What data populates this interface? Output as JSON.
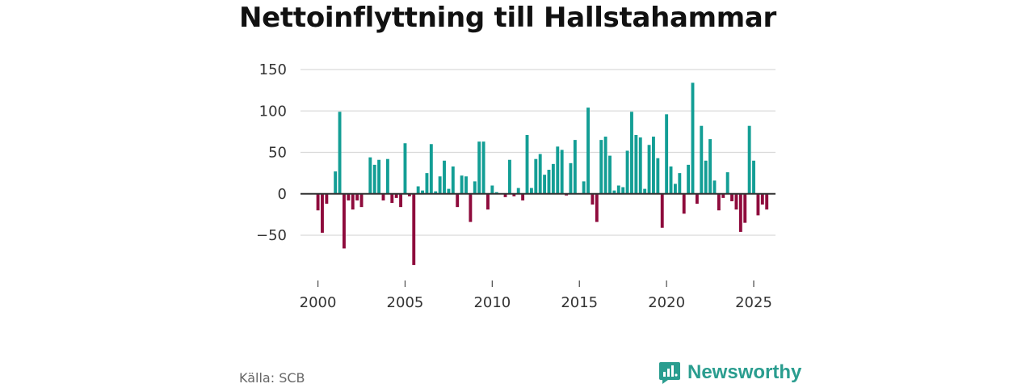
{
  "title": "Nettoinflyttning till Hallstahammar",
  "source": "Källa: SCB",
  "brand": {
    "name": "Newsworthy",
    "logo_icon": "newsworthy-logo-icon"
  },
  "colors": {
    "positive": "#139e95",
    "negative": "#8e0b3c",
    "grid": "#d9d9d9",
    "zero_line": "#333333",
    "brand": "#2a9d8f"
  },
  "chart_data": {
    "type": "bar",
    "title": "Nettoinflyttning till Hallstahammar",
    "xlabel": "",
    "ylabel": "",
    "ylim": [
      -90,
      150
    ],
    "xlim": [
      1999.0,
      2026.25
    ],
    "yticks": [
      150,
      100,
      50,
      0,
      -50
    ],
    "ytick_labels": [
      "150",
      "100",
      "50",
      "0",
      "−50"
    ],
    "xticks": [
      2000,
      2005,
      2010,
      2015,
      2020,
      2025
    ],
    "xtick_labels": [
      "2000",
      "2005",
      "2010",
      "2015",
      "2020",
      "2025"
    ],
    "x_start": 2000.0,
    "x_step": 0.25,
    "values": [
      -20,
      -47,
      -12,
      0,
      27,
      99,
      -66,
      -8,
      -19,
      -8,
      -16,
      0,
      44,
      35,
      41,
      -8,
      42,
      -11,
      -5,
      -16,
      61,
      -3,
      -86,
      9,
      4,
      25,
      60,
      3,
      21,
      40,
      6,
      33,
      -16,
      22,
      21,
      -34,
      15,
      63,
      63,
      -19,
      10,
      2,
      0,
      -4,
      41,
      -3,
      7,
      -8,
      71,
      7,
      42,
      48,
      23,
      29,
      36,
      57,
      53,
      -2,
      37,
      65,
      0,
      15,
      104,
      -13,
      -34,
      65,
      69,
      46,
      4,
      10,
      8,
      52,
      99,
      71,
      68,
      6,
      59,
      69,
      43,
      -41,
      96,
      33,
      12,
      25,
      -24,
      35,
      134,
      -12,
      82,
      40,
      66,
      16,
      -20,
      -5,
      26,
      -9,
      -19,
      -46,
      -35,
      82,
      40,
      -26,
      -13,
      -19
    ]
  }
}
